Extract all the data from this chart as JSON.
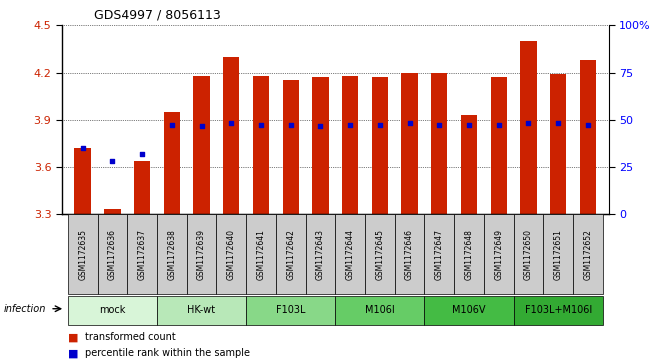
{
  "title": "GDS4997 / 8056113",
  "samples": [
    "GSM1172635",
    "GSM1172636",
    "GSM1172637",
    "GSM1172638",
    "GSM1172639",
    "GSM1172640",
    "GSM1172641",
    "GSM1172642",
    "GSM1172643",
    "GSM1172644",
    "GSM1172645",
    "GSM1172646",
    "GSM1172647",
    "GSM1172648",
    "GSM1172649",
    "GSM1172650",
    "GSM1172651",
    "GSM1172652"
  ],
  "bar_values": [
    3.72,
    3.33,
    3.64,
    3.95,
    4.18,
    4.3,
    4.18,
    4.15,
    4.17,
    4.18,
    4.17,
    4.2,
    4.2,
    3.93,
    4.17,
    4.4,
    4.19,
    4.28
  ],
  "percentile_values": [
    3.72,
    3.64,
    3.68,
    3.87,
    3.86,
    3.88,
    3.87,
    3.87,
    3.86,
    3.87,
    3.87,
    3.88,
    3.87,
    3.87,
    3.87,
    3.88,
    3.88,
    3.87
  ],
  "ylim_left": [
    3.3,
    4.5
  ],
  "ylim_right": [
    0,
    100
  ],
  "yticks_left": [
    3.3,
    3.6,
    3.9,
    4.2,
    4.5
  ],
  "yticks_right": [
    0,
    25,
    50,
    75,
    100
  ],
  "bar_color": "#cc2200",
  "percentile_color": "#0000cc",
  "bar_width": 0.55,
  "groups": [
    {
      "label": "mock",
      "indices": [
        0,
        1,
        2
      ],
      "color": "#d8f5d8"
    },
    {
      "label": "HK-wt",
      "indices": [
        3,
        4,
        5
      ],
      "color": "#b8e8b8"
    },
    {
      "label": "F103L",
      "indices": [
        6,
        7,
        8
      ],
      "color": "#88d888"
    },
    {
      "label": "M106I",
      "indices": [
        9,
        10,
        11
      ],
      "color": "#66cc66"
    },
    {
      "label": "M106V",
      "indices": [
        12,
        13,
        14
      ],
      "color": "#44bb44"
    },
    {
      "label": "F103L+M106I",
      "indices": [
        15,
        16,
        17
      ],
      "color": "#33aa33"
    }
  ],
  "infection_label": "infection",
  "legend_bar_label": "transformed count",
  "legend_pct_label": "percentile rank within the sample",
  "sample_label_bg": "#cccccc",
  "plot_bg": "#ffffff"
}
